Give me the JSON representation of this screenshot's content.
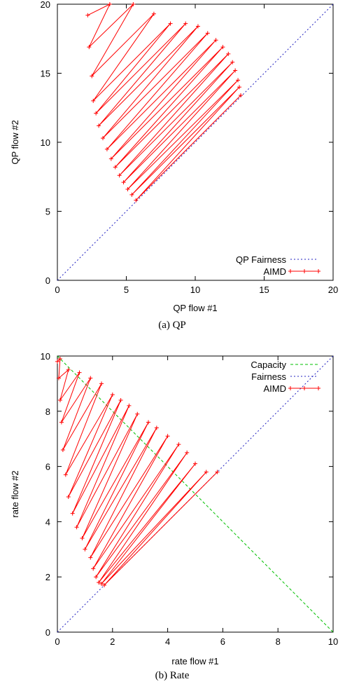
{
  "chart_data": [
    {
      "type": "line",
      "panel_caption": "(a) QP",
      "xlabel": "QP flow #1",
      "ylabel": "QP flow #2",
      "xlim": [
        0,
        20
      ],
      "ylim": [
        0,
        20
      ],
      "xticks": [
        "0",
        "5",
        "10",
        "15",
        "20"
      ],
      "yticks": [
        "0",
        "5",
        "10",
        "15",
        "20"
      ],
      "grid": false,
      "legend_position": "bottom-right",
      "series": [
        {
          "name": "QP Fairness",
          "style": "dotted",
          "color": "#2020c0",
          "x": [
            0,
            20
          ],
          "y": [
            0,
            20
          ]
        },
        {
          "name": "AIMD",
          "style": "line-with-plus-markers",
          "color": "#ff0000",
          "note": "sawtooth trajectory: linear increase segments slope-1 toward the fairness line, then multiplicative decrease",
          "x": [
            2.2,
            3.8,
            2.3,
            5.5,
            2.5,
            7.0,
            2.6,
            8.2,
            2.8,
            9.3,
            3.0,
            10.2,
            3.3,
            10.9,
            3.6,
            11.5,
            3.9,
            12.0,
            4.2,
            12.4,
            4.5,
            12.7,
            4.8,
            12.9,
            5.1,
            13.1,
            5.4,
            13.2,
            5.7,
            13.3
          ],
          "y": [
            19.2,
            20.0,
            16.9,
            20.0,
            14.8,
            19.3,
            13.0,
            18.6,
            12.1,
            18.6,
            11.2,
            18.4,
            10.3,
            17.9,
            9.5,
            17.4,
            8.8,
            16.9,
            8.2,
            16.4,
            7.6,
            15.8,
            7.1,
            15.2,
            6.6,
            14.5,
            6.2,
            14.0,
            5.8,
            13.4
          ]
        }
      ]
    },
    {
      "type": "line",
      "panel_caption": "(b) Rate",
      "xlabel": "rate flow #1",
      "ylabel": "rate flow #2",
      "xlim": [
        0,
        10
      ],
      "ylim": [
        0,
        10
      ],
      "xticks": [
        "0",
        "2",
        "4",
        "6",
        "8",
        "10"
      ],
      "yticks": [
        "0",
        "2",
        "4",
        "6",
        "8",
        "10"
      ],
      "grid": false,
      "legend_position": "top-right",
      "series": [
        {
          "name": "Capacity",
          "style": "dashed",
          "color": "#00c000",
          "x": [
            0,
            10
          ],
          "y": [
            10,
            0
          ]
        },
        {
          "name": "Fairness",
          "style": "dotted",
          "color": "#2020c0",
          "x": [
            0,
            10
          ],
          "y": [
            0,
            10
          ]
        },
        {
          "name": "AIMD",
          "style": "line-with-plus-markers",
          "color": "#ff0000",
          "note": "sawtooth trajectory: additive increase along slope 1, multiplicative decrease toward origin, converging to fairness",
          "x": [
            0.0,
            0.1,
            0.05,
            0.4,
            0.1,
            0.8,
            0.15,
            1.2,
            0.2,
            1.6,
            0.3,
            2.0,
            0.4,
            2.3,
            0.55,
            2.6,
            0.7,
            2.9,
            0.9,
            3.3,
            1.0,
            3.6,
            1.2,
            4.0,
            1.3,
            4.4,
            1.4,
            4.7,
            1.5,
            5.0,
            1.6,
            5.4,
            1.7,
            5.8
          ],
          "y": [
            9.8,
            9.9,
            9.2,
            9.5,
            8.4,
            9.4,
            7.6,
            9.2,
            6.6,
            9.0,
            5.7,
            8.6,
            4.9,
            8.4,
            4.3,
            8.2,
            3.8,
            7.9,
            3.4,
            7.6,
            3.0,
            7.4,
            2.7,
            7.1,
            2.3,
            6.8,
            2.0,
            6.5,
            1.8,
            6.1,
            1.75,
            5.8,
            1.7,
            5.8
          ]
        }
      ]
    }
  ]
}
